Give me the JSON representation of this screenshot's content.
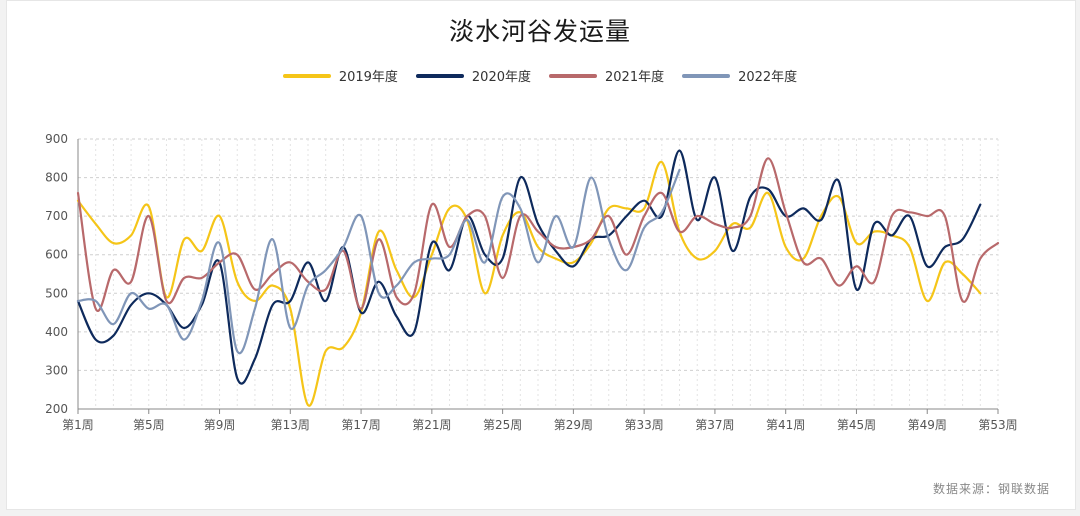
{
  "title": "淡水河谷发运量",
  "source": "数据来源：钢联数据",
  "legend": [
    {
      "name": "2019年度",
      "color": "#f5c518"
    },
    {
      "name": "2020年度",
      "color": "#0e2a5c"
    },
    {
      "name": "2021年度",
      "color": "#b8696b"
    },
    {
      "name": "2022年度",
      "color": "#8096b8"
    }
  ],
  "chart_data": {
    "type": "line",
    "title": "淡水河谷发运量",
    "xlabel": "",
    "ylabel": "",
    "ylim": [
      200,
      900
    ],
    "yticks": [
      200,
      300,
      400,
      500,
      600,
      700,
      800,
      900
    ],
    "x_range": [
      1,
      53
    ],
    "xticks": [
      1,
      5,
      9,
      13,
      17,
      21,
      25,
      29,
      33,
      37,
      41,
      45,
      49,
      53
    ],
    "xtick_labels": [
      "第1周",
      "第5周",
      "第9周",
      "第13周",
      "第17周",
      "第21周",
      "第25周",
      "第29周",
      "第33周",
      "第37周",
      "第41周",
      "第45周",
      "第49周",
      "第53周"
    ],
    "grid": true,
    "legend_position": "top-center",
    "smooth": true,
    "series": [
      {
        "name": "2019年度",
        "color": "#f5c518",
        "x": [
          1,
          2,
          3,
          4,
          5,
          6,
          7,
          8,
          9,
          10,
          11,
          12,
          13,
          14,
          15,
          16,
          17,
          18,
          19,
          20,
          21,
          22,
          23,
          24,
          25,
          26,
          27,
          28,
          29,
          30,
          31,
          32,
          33,
          34,
          35,
          36,
          37,
          38,
          39,
          40,
          41,
          42,
          43,
          44,
          45,
          46,
          47,
          48,
          49,
          50,
          51,
          52
        ],
        "values": [
          740,
          680,
          630,
          650,
          725,
          490,
          640,
          610,
          700,
          530,
          480,
          520,
          460,
          210,
          350,
          360,
          450,
          660,
          560,
          490,
          600,
          720,
          690,
          500,
          650,
          710,
          620,
          590,
          580,
          630,
          720,
          720,
          720,
          840,
          660,
          590,
          610,
          680,
          670,
          760,
          620,
          590,
          700,
          750,
          630,
          660,
          650,
          620,
          480,
          580,
          550,
          500
        ]
      },
      {
        "name": "2020年度",
        "color": "#0e2a5c",
        "x": [
          1,
          2,
          3,
          4,
          5,
          6,
          7,
          8,
          9,
          10,
          11,
          12,
          13,
          14,
          15,
          16,
          17,
          18,
          19,
          20,
          21,
          22,
          23,
          24,
          25,
          26,
          27,
          28,
          29,
          30,
          31,
          32,
          33,
          34,
          35,
          36,
          37,
          38,
          39,
          40,
          41,
          42,
          43,
          44,
          45,
          46,
          47,
          48,
          49,
          50,
          51,
          52
        ],
        "values": [
          480,
          380,
          390,
          470,
          500,
          470,
          410,
          470,
          580,
          280,
          330,
          470,
          480,
          580,
          480,
          620,
          450,
          530,
          440,
          400,
          630,
          560,
          700,
          600,
          590,
          800,
          680,
          610,
          570,
          640,
          650,
          700,
          740,
          700,
          870,
          690,
          800,
          610,
          750,
          770,
          700,
          720,
          690,
          790,
          510,
          680,
          650,
          700,
          570,
          620,
          640,
          730
        ]
      },
      {
        "name": "2021年度",
        "color": "#b8696b",
        "x": [
          1,
          2,
          3,
          4,
          5,
          6,
          7,
          8,
          9,
          10,
          11,
          12,
          13,
          14,
          15,
          16,
          17,
          18,
          19,
          20,
          21,
          22,
          23,
          24,
          25,
          26,
          27,
          28,
          29,
          30,
          31,
          32,
          33,
          34,
          35,
          36,
          37,
          38,
          39,
          40,
          41,
          42,
          43,
          44,
          45,
          46,
          47,
          48,
          49,
          50,
          51,
          52,
          53
        ],
        "values": [
          760,
          460,
          560,
          530,
          700,
          480,
          540,
          540,
          580,
          600,
          510,
          550,
          580,
          530,
          510,
          610,
          460,
          640,
          490,
          500,
          730,
          620,
          700,
          700,
          540,
          700,
          660,
          620,
          620,
          640,
          700,
          600,
          700,
          760,
          660,
          700,
          680,
          670,
          700,
          850,
          710,
          580,
          590,
          520,
          570,
          530,
          700,
          710,
          700,
          700,
          480,
          590,
          630
        ]
      },
      {
        "name": "2022年度",
        "color": "#8096b8",
        "x": [
          1,
          2,
          3,
          4,
          5,
          6,
          7,
          8,
          9,
          10,
          11,
          12,
          13,
          14,
          15,
          16,
          17,
          18,
          19,
          20,
          21,
          22,
          23,
          24,
          25,
          26,
          27,
          28,
          29,
          30,
          31,
          32,
          33,
          34,
          35
        ],
        "values": [
          480,
          480,
          420,
          500,
          460,
          470,
          380,
          480,
          630,
          350,
          460,
          640,
          410,
          520,
          560,
          620,
          700,
          500,
          520,
          580,
          590,
          600,
          690,
          580,
          750,
          720,
          580,
          700,
          620,
          800,
          640,
          560,
          670,
          710,
          820
        ]
      }
    ]
  }
}
